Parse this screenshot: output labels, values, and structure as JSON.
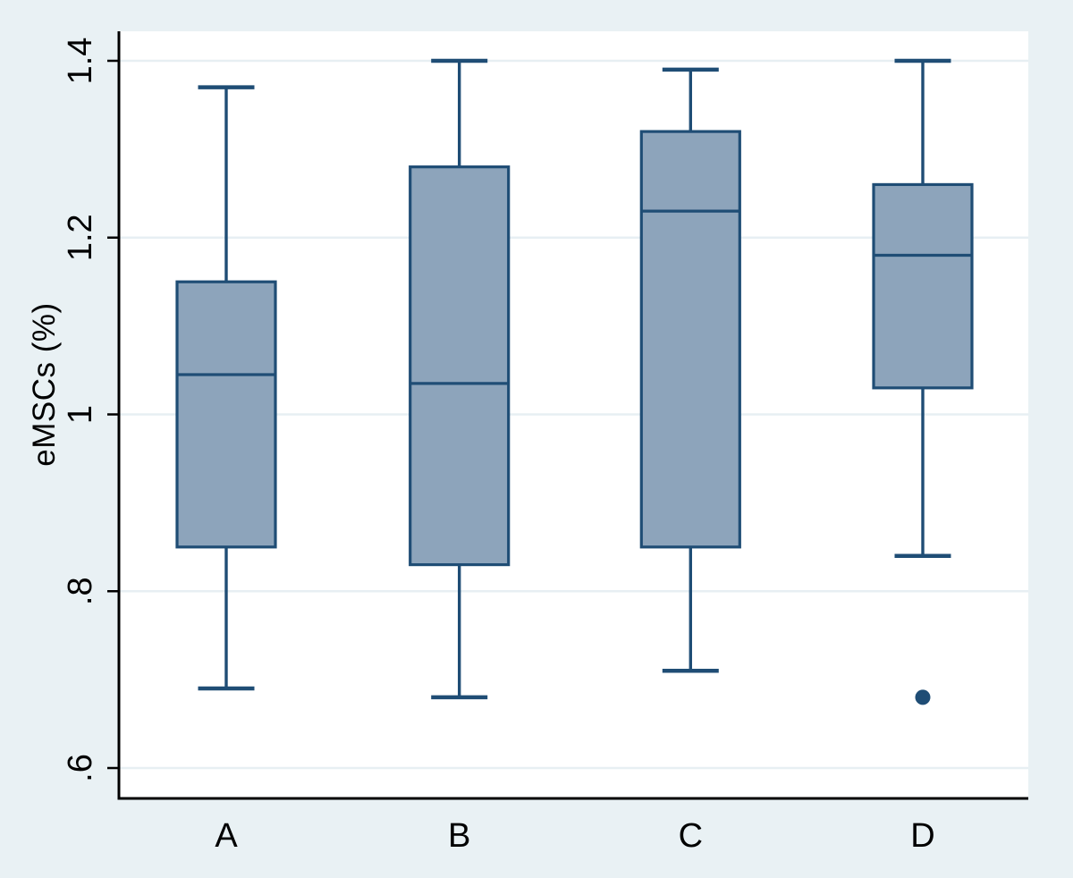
{
  "figure": {
    "title": "",
    "y_axis_title": "eMSCs (%)"
  },
  "chart_data": {
    "type": "box",
    "title": "",
    "xlabel": "",
    "ylabel": "eMSCs (%)",
    "categories": [
      "A",
      "B",
      "C",
      "D"
    ],
    "y_axis": {
      "tick_values": [
        0.6,
        0.8,
        1.0,
        1.2,
        1.4
      ],
      "tick_labels": [
        ".6",
        ".8",
        "1",
        "1.2",
        "1.4"
      ],
      "range": [
        0.565,
        1.435
      ],
      "tick_label_rotation_deg": -90
    },
    "grid": "horizontal",
    "legend": "none",
    "boxes": [
      {
        "category": "A",
        "whisker_low": 0.69,
        "q1": 0.85,
        "median": 1.045,
        "q3": 1.15,
        "whisker_high": 1.37,
        "outliers": []
      },
      {
        "category": "B",
        "whisker_low": 0.68,
        "q1": 0.83,
        "median": 1.035,
        "q3": 1.28,
        "whisker_high": 1.4,
        "outliers": []
      },
      {
        "category": "C",
        "whisker_low": 0.71,
        "q1": 0.85,
        "median": 1.23,
        "q3": 1.32,
        "whisker_high": 1.39,
        "outliers": []
      },
      {
        "category": "D",
        "whisker_low": 0.84,
        "q1": 1.03,
        "median": 1.18,
        "q3": 1.26,
        "whisker_high": 1.4,
        "outliers": [
          0.68
        ]
      }
    ],
    "colors": {
      "box_fill": "#8da4bb",
      "box_border": "#1f4d75",
      "whisker": "#1f4d75",
      "median": "#1f4d75",
      "outlier": "#1f4d75",
      "background": "#e9f1f4",
      "plot_background": "#ffffff",
      "gridline": "#e7eff3",
      "axis": "#000000",
      "text": "#000000"
    }
  }
}
